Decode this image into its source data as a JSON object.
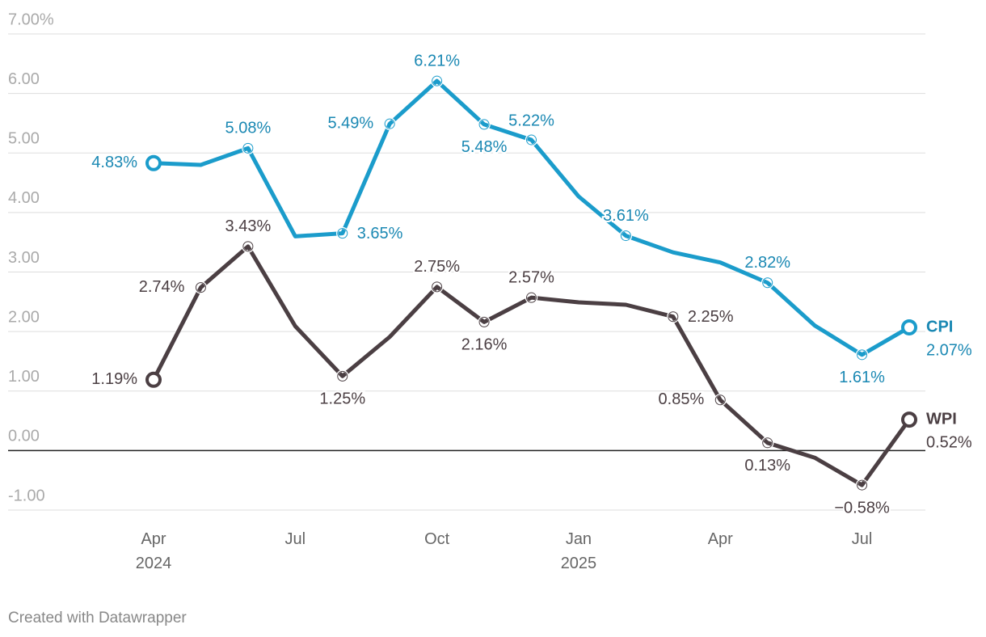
{
  "chart_data": {
    "type": "line",
    "categories": [
      "Apr 2024",
      null,
      null,
      "Jul",
      null,
      null,
      "Oct",
      null,
      null,
      "Jan 2025",
      null,
      null,
      "Apr",
      null,
      null,
      "Jul",
      null
    ],
    "series": [
      {
        "name": "CPI",
        "color": "#1b9ccb",
        "values": [
          4.83,
          4.8,
          5.08,
          3.6,
          3.65,
          5.49,
          6.21,
          5.48,
          5.22,
          4.27,
          3.61,
          3.33,
          3.16,
          2.82,
          2.1,
          1.61,
          2.07
        ],
        "value_labels": [
          "4.83%",
          null,
          "5.08%",
          null,
          "3.65%",
          "5.49%",
          "6.21%",
          "5.48%",
          "5.22%",
          null,
          "3.61%",
          null,
          null,
          "2.82%",
          null,
          "1.61%",
          "2.07%"
        ]
      },
      {
        "name": "WPI",
        "color": "#4b3f43",
        "values": [
          1.19,
          2.74,
          3.43,
          2.09,
          1.25,
          1.91,
          2.75,
          2.16,
          2.57,
          2.49,
          2.45,
          2.25,
          0.85,
          0.13,
          -0.12,
          -0.58,
          0.52
        ],
        "value_labels": [
          "1.19%",
          "2.74%",
          "3.43%",
          null,
          "1.25%",
          null,
          "2.75%",
          "2.16%",
          "2.57%",
          null,
          null,
          "2.25%",
          "0.85%",
          "0.13%",
          null,
          "−0.58%",
          "0.52%"
        ]
      }
    ],
    "ylim": [
      -1,
      7
    ],
    "yticks": [
      {
        "value": -1,
        "label": "-1.00"
      },
      {
        "value": 0,
        "label": "0.00"
      },
      {
        "value": 1,
        "label": "1.00"
      },
      {
        "value": 2,
        "label": "2.00"
      },
      {
        "value": 3,
        "label": "3.00"
      },
      {
        "value": 4,
        "label": "4.00"
      },
      {
        "value": 5,
        "label": "5.00"
      },
      {
        "value": 6,
        "label": "6.00"
      },
      {
        "value": 7,
        "label": "7.00%"
      }
    ],
    "grid": true,
    "footer": "Created with Datawrapper"
  }
}
